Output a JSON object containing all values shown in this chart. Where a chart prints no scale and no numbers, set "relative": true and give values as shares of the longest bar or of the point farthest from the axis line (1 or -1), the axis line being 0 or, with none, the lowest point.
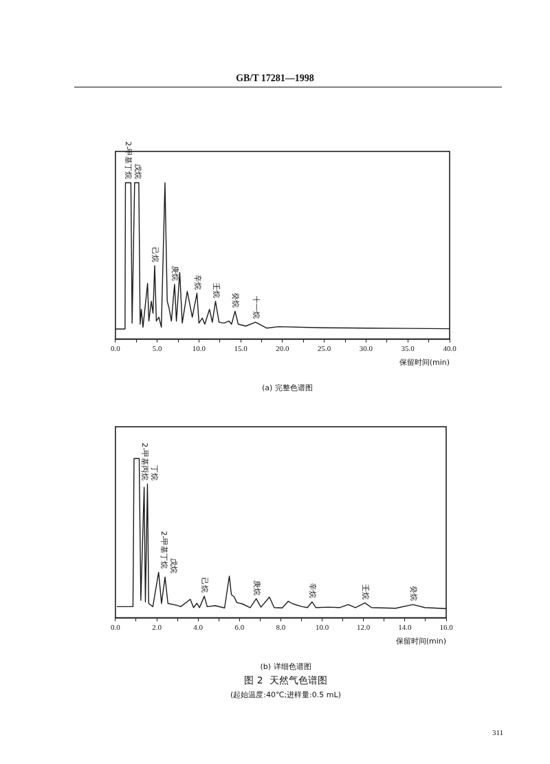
{
  "chart_data": [
    {
      "type": "line",
      "title": "(a) 完整色谱图",
      "xlabel": "保留时间(min)",
      "relative": true,
      "grid": false,
      "legend": false,
      "marker": "none",
      "xlim": [
        0,
        40
      ],
      "xticks": [
        {
          "value": 0,
          "label": "0.0"
        },
        {
          "value": 2.5,
          "label": null
        },
        {
          "value": 5,
          "label": "5.0"
        },
        {
          "value": 7.5,
          "label": null
        },
        {
          "value": 10,
          "label": "10.0"
        },
        {
          "value": 12.5,
          "label": null
        },
        {
          "value": 15,
          "label": "15.0"
        },
        {
          "value": 17.5,
          "label": null
        },
        {
          "value": 20,
          "label": "20.0"
        },
        {
          "value": 22.5,
          "label": null
        },
        {
          "value": 25,
          "label": "25.0"
        },
        {
          "value": 27.5,
          "label": null
        },
        {
          "value": 30,
          "label": "30.0"
        },
        {
          "value": 32.5,
          "label": null
        },
        {
          "value": 35,
          "label": "35.0"
        },
        {
          "value": 37.5,
          "label": null
        },
        {
          "value": 40,
          "label": "40.0"
        }
      ],
      "x": [
        0,
        1.15,
        1.2,
        1.85,
        2.0,
        2.3,
        2.8,
        2.96,
        3.1,
        3.3,
        3.85,
        4.0,
        4.3,
        4.5,
        4.7,
        4.9,
        5.2,
        5.5,
        5.93,
        6.2,
        6.4,
        6.7,
        7.08,
        7.3,
        7.7,
        8.0,
        8.6,
        9.2,
        9.76,
        10.0,
        10.4,
        10.7,
        11.26,
        11.6,
        11.98,
        12.4,
        13.0,
        13.6,
        13.9,
        14.32,
        14.7,
        15.6,
        16.77,
        18.1,
        19.5,
        25,
        30,
        35,
        40
      ],
      "series": [
        {
          "color": "#1a1a1a",
          "values": [
            0.064,
            0.064,
            1,
            1,
            0.102,
            1,
            1,
            0.095,
            0.19,
            0.076,
            0.356,
            0.115,
            0.242,
            0.165,
            0.47,
            0.115,
            0.14,
            0.076,
            1,
            0.242,
            0.203,
            0.115,
            0.35,
            0.115,
            0.426,
            0.102,
            0.305,
            0.14,
            0.293,
            0.102,
            0.134,
            0.095,
            0.19,
            0.108,
            0.242,
            0.108,
            0.102,
            0.115,
            0.095,
            0.178,
            0.095,
            0.083,
            0.108,
            0.07,
            0.079,
            0.072,
            0.07,
            0.068,
            0.066
          ]
        }
      ],
      "annotations": [
        "GB/T 17281—1998",
        "311",
        {
          "text": "2-甲基丁烷",
          "x": 1.5,
          "y": 1
        },
        {
          "text": "戊烷",
          "x": 2.55,
          "y": 1
        },
        {
          "text": "己烷",
          "x": 4.7,
          "y": 0.47
        },
        {
          "text": "庚烷",
          "x": 7.08,
          "y": 0.35
        },
        {
          "text": "辛烷",
          "x": 9.76,
          "y": 0.293
        },
        {
          "text": "壬烷",
          "x": 11.98,
          "y": 0.242
        },
        {
          "text": "癸烷",
          "x": 14.32,
          "y": 0.178
        },
        {
          "text": "十一烷",
          "x": 16.77,
          "y": 0.108
        }
      ]
    },
    {
      "type": "line",
      "title": "(b) 详细色谱图",
      "xlabel": "保留时间(min)",
      "relative": true,
      "grid": false,
      "legend": false,
      "marker": "none",
      "xlim": [
        0,
        16
      ],
      "xticks": [
        {
          "value": 0,
          "label": "0.0"
        },
        {
          "value": 1,
          "label": null
        },
        {
          "value": 2,
          "label": "2.0"
        },
        {
          "value": 3,
          "label": null
        },
        {
          "value": 4,
          "label": "4.0"
        },
        {
          "value": 5,
          "label": null
        },
        {
          "value": 6,
          "label": "6.0"
        },
        {
          "value": 7,
          "label": null
        },
        {
          "value": 8,
          "label": "8.0"
        },
        {
          "value": 9,
          "label": null
        },
        {
          "value": 10,
          "label": "10.0"
        },
        {
          "value": 11,
          "label": null
        },
        {
          "value": 12,
          "label": "12.0"
        },
        {
          "value": 13,
          "label": null
        },
        {
          "value": 14,
          "label": "14.0"
        },
        {
          "value": 15,
          "label": null
        },
        {
          "value": 16,
          "label": "16.0"
        }
      ],
      "x": [
        0.07,
        0.85,
        0.9,
        1.15,
        1.23,
        1.39,
        1.45,
        1.55,
        1.61,
        1.81,
        2.09,
        2.23,
        2.4,
        2.54,
        2.97,
        3.16,
        3.62,
        3.78,
        3.94,
        4.07,
        4.3,
        4.44,
        4.83,
        5.28,
        5.51,
        5.61,
        5.74,
        5.87,
        6.13,
        6.52,
        6.81,
        7.04,
        7.45,
        7.68,
        8.07,
        8.36,
        8.58,
        9.03,
        9.29,
        9.51,
        9.7,
        10.32,
        10.84,
        11.26,
        11.61,
        12.07,
        12.39,
        13.55,
        14.39,
        14.97,
        16
      ],
      "series": [
        {
          "color": "#1a1a1a",
          "values": [
            0.07,
            0.07,
            1,
            1,
            0.11,
            0.82,
            0.1,
            0.84,
            0.09,
            0.07,
            0.286,
            0.09,
            0.256,
            0.09,
            0.079,
            0.07,
            0.116,
            0.064,
            0.091,
            0.064,
            0.136,
            0.07,
            0.076,
            0.062,
            0.262,
            0.145,
            0.132,
            0.096,
            0.088,
            0.064,
            0.12,
            0.067,
            0.13,
            0.064,
            0.062,
            0.104,
            0.088,
            0.07,
            0.064,
            0.1,
            0.064,
            0.067,
            0.064,
            0.083,
            0.064,
            0.094,
            0.064,
            0.06,
            0.083,
            0.064,
            0.058
          ]
        }
      ],
      "annotations": [
        "图 2  天然气色谱图",
        "(起始温度:40℃;进样量:0.5 mL)",
        {
          "text": "2-甲基丙烷",
          "x": 1.39,
          "y": 0.82
        },
        {
          "text": "丁烷",
          "x": 1.55,
          "y": 0.84
        },
        {
          "text": "2-甲基丁烷",
          "x": 2.09,
          "y": 0.286
        },
        {
          "text": "戊烷",
          "x": 2.4,
          "y": 0.256
        },
        {
          "text": "己烷",
          "x": 4.3,
          "y": 0.136
        },
        {
          "text": "庚烷",
          "x": 6.81,
          "y": 0.12
        },
        {
          "text": "辛烷",
          "x": 9.51,
          "y": 0.1
        },
        {
          "text": "壬烷",
          "x": 12.07,
          "y": 0.094
        },
        {
          "text": "癸烷",
          "x": 14.39,
          "y": 0.083
        }
      ]
    }
  ]
}
